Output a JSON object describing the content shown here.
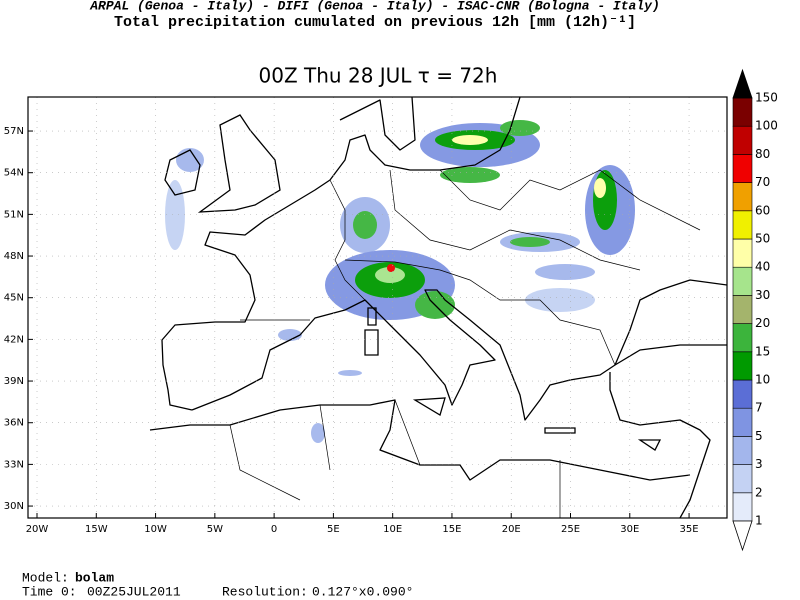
{
  "header": {
    "credits": "ARPAL (Genoa - Italy)  -  DIFI (Genoa - Italy)  -  ISAC-CNR (Bologna - Italy)",
    "title": "Total precipitation cumulated on previous 12h [mm (12h)⁻¹]"
  },
  "map": {
    "title": "00Z Thu 28 JUL  τ = 72h",
    "xlim": [
      -20.76,
      38.2
    ],
    "ylim": [
      29.14,
      59.45
    ],
    "xticks": [
      {
        "value": -20,
        "label": "20W"
      },
      {
        "value": -15,
        "label": "15W"
      },
      {
        "value": -10,
        "label": "10W"
      },
      {
        "value": -5,
        "label": "5W"
      },
      0,
      {
        "value": 5,
        "label": "5E"
      },
      {
        "value": 10,
        "label": "10E"
      },
      {
        "value": 15,
        "label": "15E"
      },
      {
        "value": 20,
        "label": "20E"
      },
      {
        "value": 25,
        "label": "25E"
      },
      {
        "value": 30,
        "label": "30E"
      },
      {
        "value": 35,
        "label": "35E"
      }
    ],
    "yticks": [
      {
        "value": 30,
        "label": "30N"
      },
      {
        "value": 33,
        "label": "33N"
      },
      {
        "value": 36,
        "label": "36N"
      },
      {
        "value": 39,
        "label": "39N"
      },
      {
        "value": 42,
        "label": "42N"
      },
      {
        "value": 45,
        "label": "45N"
      },
      {
        "value": 48,
        "label": "48N"
      },
      {
        "value": 51,
        "label": "51N"
      },
      {
        "value": 54,
        "label": "54N"
      },
      {
        "value": 57,
        "label": "57N"
      }
    ]
  },
  "colorbar": {
    "levels": [
      1,
      2,
      3,
      5,
      7,
      10,
      15,
      20,
      30,
      40,
      50,
      60,
      70,
      80,
      100,
      150
    ],
    "colors": [
      "#e4ebfa",
      "#c4d2f3",
      "#a3b6ec",
      "#7f94e2",
      "#5b6ed6",
      "#009a00",
      "#3cb43c",
      "#a4b46c",
      "#a6e48c",
      "#ffffa8",
      "#f0f000",
      "#f0a000",
      "#f00000",
      "#c00000",
      "#7a0000"
    ],
    "under_color": "#ffffff",
    "over_color": "#000000"
  },
  "footer": {
    "model_label": "Model:",
    "model": "bolam",
    "time_label": "Time 0:",
    "time": "00Z25JUL2011",
    "resolution_label": "Resolution:",
    "resolution": "0.127°x0.090°"
  }
}
